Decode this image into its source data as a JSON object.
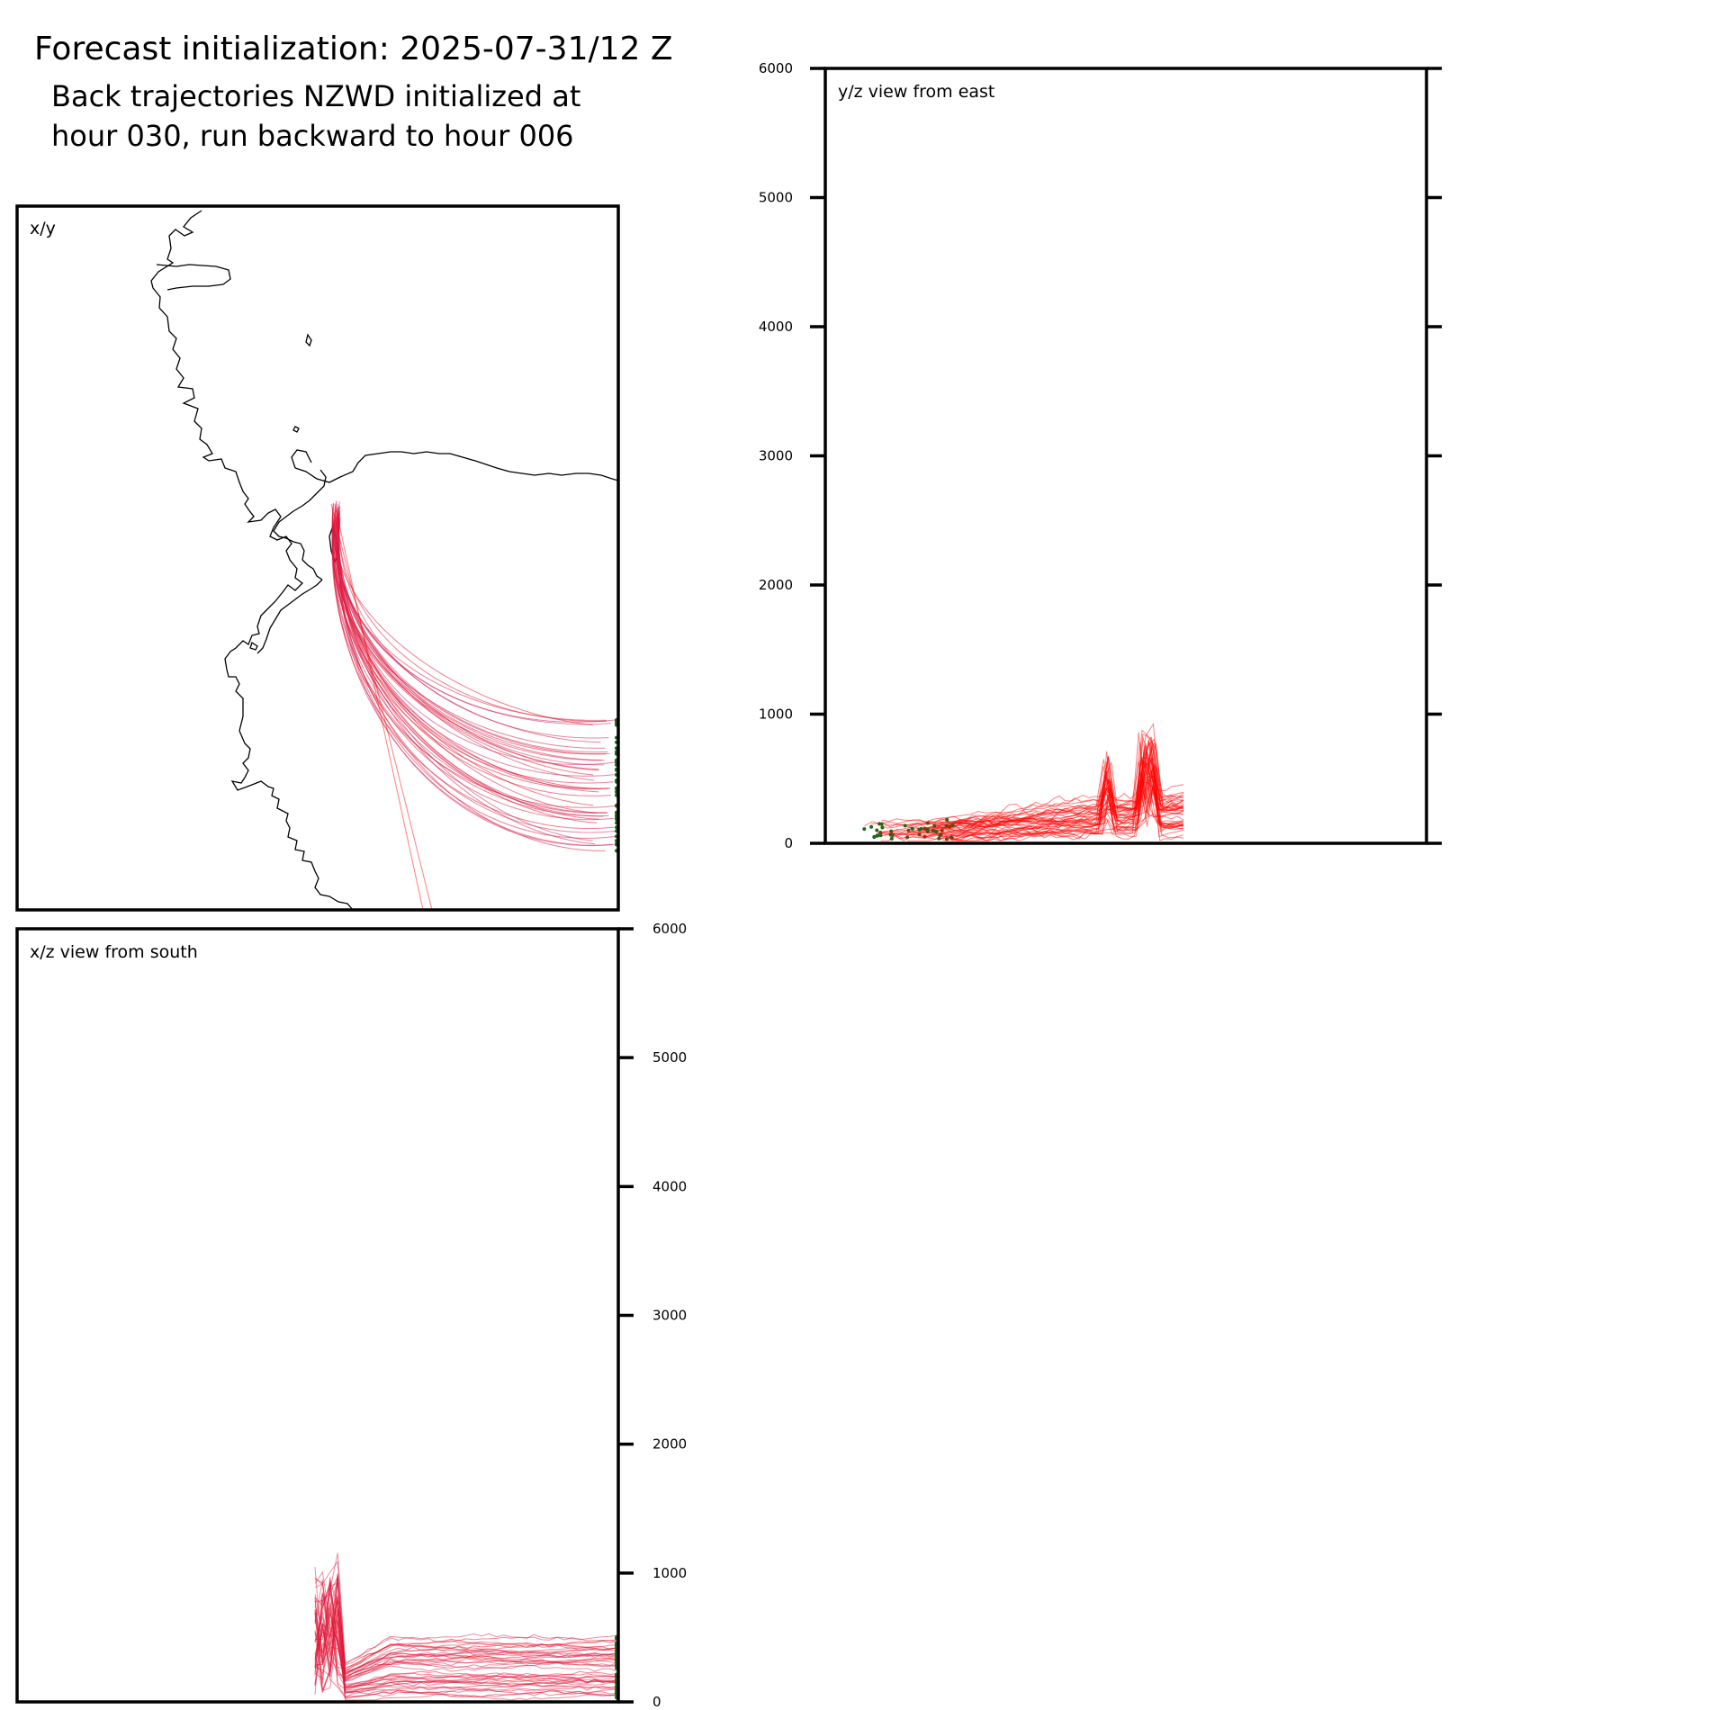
{
  "figure": {
    "title": "Forecast initialization: 2025-07-31/12 Z",
    "subtitle_line1": "Back trajectories NZWD initialized at",
    "subtitle_line2": "hour 030, run backward to hour 006"
  },
  "colors": {
    "trajectory_early": "#ff0000",
    "trajectory_late": "#c0307a",
    "endpoint_marker": "#1a6b1a",
    "coastline": "#000000",
    "frame": "#000000"
  },
  "chart_data": [
    {
      "type": "line",
      "panel": "xy",
      "label": "x/y",
      "xlabel": "",
      "ylabel": "",
      "grid": false,
      "description_note": "",
      "series": []
    },
    {
      "type": "line",
      "panel": "yz",
      "label": "y/z view from east",
      "xlabel": "",
      "ylabel": "",
      "ylim": [
        0,
        6000
      ],
      "yticks": [
        0,
        1000,
        2000,
        3000,
        4000,
        5000,
        6000
      ],
      "tick_side": "left-and-right",
      "tick_labels_side": "left",
      "grid": false
    },
    {
      "type": "line",
      "panel": "xz",
      "label": "x/z view from south",
      "xlabel": "",
      "ylabel": "",
      "ylim": [
        0,
        6000
      ],
      "yticks": [
        0,
        1000,
        2000,
        3000,
        4000,
        5000,
        6000
      ],
      "tick_side": "right",
      "tick_labels_side": "right",
      "grid": false
    }
  ]
}
